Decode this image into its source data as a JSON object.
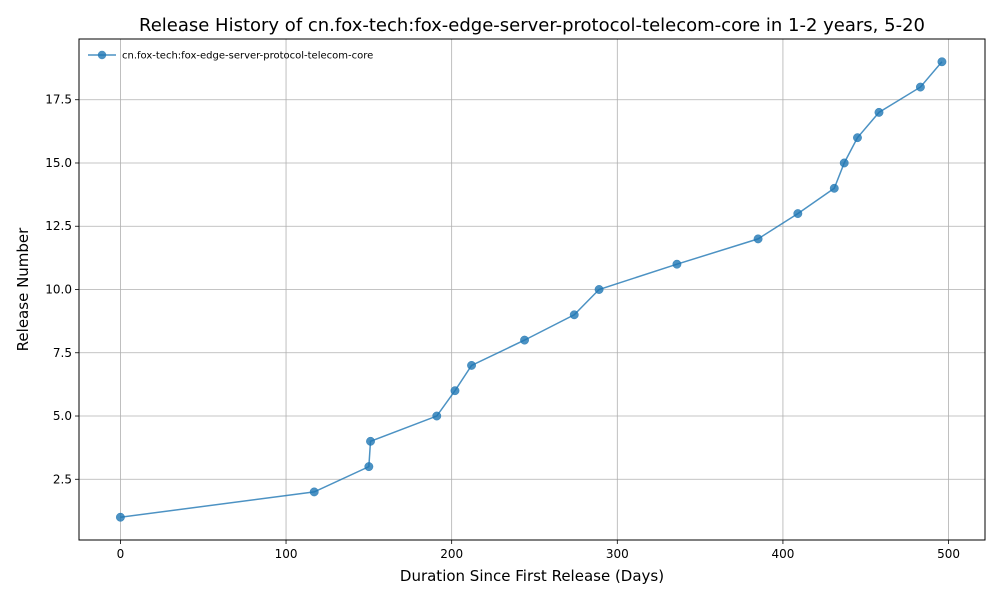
{
  "chart_data": {
    "type": "line",
    "title": "Release History of cn.fox-tech:fox-edge-server-protocol-telecom-core in 1-2 years, 5-20",
    "xlabel": "Duration Since First Release (Days)",
    "ylabel": "Release Number",
    "xlim": [
      -25,
      522
    ],
    "ylim": [
      0.1,
      19.9
    ],
    "xticks": [
      0,
      100,
      200,
      300,
      400,
      500
    ],
    "xtick_labels": [
      "0",
      "100",
      "200",
      "300",
      "400",
      "500"
    ],
    "yticks": [
      2.5,
      5.0,
      7.5,
      10.0,
      12.5,
      15.0,
      17.5
    ],
    "ytick_labels": [
      "2.5",
      "5.0",
      "7.5",
      "10.0",
      "12.5",
      "15.0",
      "17.5"
    ],
    "grid": true,
    "legend_position": "top-left",
    "series": [
      {
        "name": "cn.fox-tech:fox-edge-server-protocol-telecom-core",
        "color": "#1f77b4",
        "x": [
          0,
          117,
          150,
          151,
          191,
          202,
          212,
          244,
          274,
          289,
          336,
          385,
          409,
          431,
          437,
          445,
          458,
          483,
          496
        ],
        "y": [
          1,
          2,
          3,
          4,
          5,
          6,
          7,
          8,
          9,
          10,
          11,
          12,
          13,
          14,
          15,
          16,
          17,
          18,
          19
        ]
      }
    ]
  }
}
